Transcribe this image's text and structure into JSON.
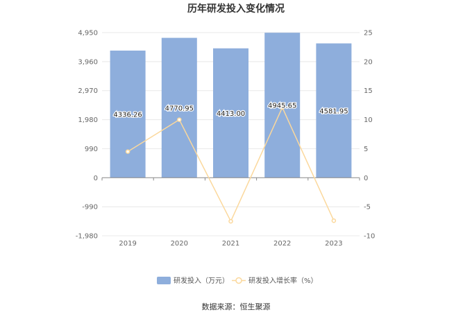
{
  "chart_data": {
    "type": "bar",
    "title": "历年研发投入变化情况",
    "categories": [
      "2019",
      "2020",
      "2021",
      "2022",
      "2023"
    ],
    "series": [
      {
        "name": "研发投入（万元）",
        "type": "bar",
        "axis": "left",
        "values": [
          4336.26,
          4770.95,
          4413.0,
          4945.65,
          4581.95
        ],
        "labels": [
          "4336.26",
          "4770.95",
          "4413.00",
          "4945.65",
          "4581.95"
        ],
        "color": "#8eaedc"
      },
      {
        "name": "研发投入增长率（%）",
        "type": "line",
        "axis": "right",
        "values": [
          4.5,
          10.0,
          -7.5,
          12.1,
          -7.4
        ],
        "color": "#fbd89c"
      }
    ],
    "y_left": {
      "ylim": [
        -1980,
        4950
      ],
      "ticks": [
        4950,
        3960,
        2970,
        1980,
        990,
        0,
        -990,
        -1980
      ],
      "tick_labels": [
        "4,950",
        "3,960",
        "2,970",
        "1,980",
        "990",
        "0",
        "-990",
        "-1,980"
      ]
    },
    "y_right": {
      "ylim": [
        -10,
        25
      ],
      "ticks": [
        25,
        20,
        15,
        10,
        5,
        0,
        -5,
        -10
      ],
      "tick_labels": [
        "25",
        "20",
        "15",
        "10",
        "5",
        "0",
        "-5",
        "-10"
      ]
    },
    "grid": true,
    "legend": "bottom",
    "source": "数据来源：恒生聚源"
  }
}
